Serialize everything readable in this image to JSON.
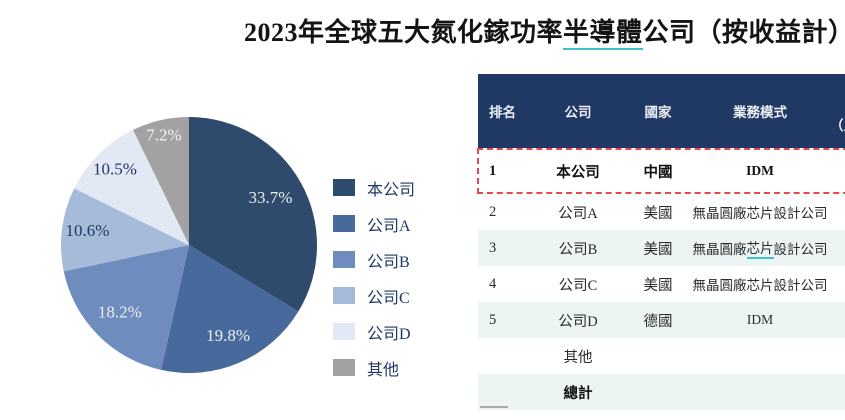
{
  "title": {
    "pre": "2023年全球五大氮化鎵功率",
    "underlined": "半導體",
    "post": "公司（按收益計）"
  },
  "chart_data": {
    "type": "pie",
    "title": "2023年全球五大氮化鎵功率半導體公司（按收益計）",
    "labels": [
      "本公司",
      "公司A",
      "公司B",
      "公司C",
      "公司D",
      "其他"
    ],
    "values": [
      33.7,
      19.8,
      18.2,
      10.6,
      10.5,
      7.2
    ],
    "labels_text": [
      "33.7%",
      "19.8%",
      "18.2%",
      "10.6%",
      "10.5%",
      "7.2%"
    ],
    "colors": [
      "#2E4A6C",
      "#47699C",
      "#6E8CBE",
      "#A6BADA",
      "#E2E9F4",
      "#A2A2A2"
    ],
    "label_text_colors": [
      "#EFEFEF",
      "#EFEFEF",
      "#EFEFEF",
      "#1F3864",
      "#1F3864",
      "#F2F2F2"
    ],
    "label_radius_fractions": [
      0.73,
      0.78,
      0.76,
      0.8,
      0.82,
      0.87
    ],
    "start_angle_deg": 0,
    "direction": "clockwise",
    "value_format": "percent",
    "legend_position": "right"
  },
  "table": {
    "columns": [
      "排名",
      "公司",
      "國家",
      "業務模式"
    ],
    "partial_column_header": "（人",
    "rows": [
      {
        "rank": "1",
        "company": "本公司",
        "country": "中國",
        "business": "IDM",
        "bold": true,
        "highlight": true,
        "tinted": false
      },
      {
        "rank": "2",
        "company": "公司A",
        "country": "美國",
        "business": "無晶圓廠芯片設計公司",
        "tinted": false
      },
      {
        "rank": "3",
        "company": "公司B",
        "country": "美國",
        "business": "無晶圓廠芯片設計公司",
        "business_underline": "芯片",
        "tinted": true
      },
      {
        "rank": "4",
        "company": "公司C",
        "country": "美國",
        "business": "無晶圓廠芯片設計公司",
        "tinted": false
      },
      {
        "rank": "5",
        "company": "公司D",
        "country": "德國",
        "business": "IDM",
        "tinted": true
      },
      {
        "rank": "",
        "company": "其他",
        "country": "",
        "business": "",
        "tinted": false
      },
      {
        "rank": "",
        "company": "總計",
        "country": "",
        "business": "",
        "bold": true,
        "tinted": true
      }
    ]
  },
  "palette": {
    "header_bg": "#1F3864",
    "row_tint": "#EDF4F4",
    "highlight_dash": "#E8484C",
    "annotation_underline": "#3EC1C9",
    "legend_text": "#1F3864"
  }
}
